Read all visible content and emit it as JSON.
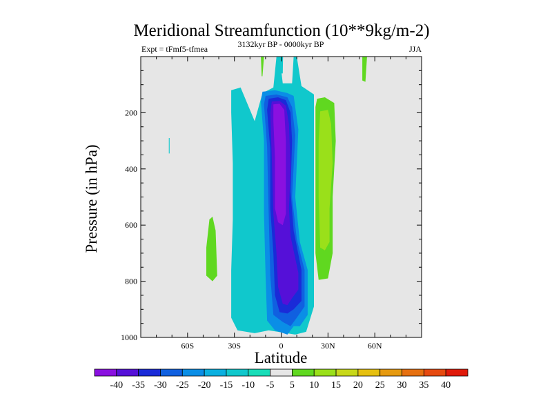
{
  "chart_data": {
    "type": "heatmap",
    "title": "Meridional Streamfunction (10**9kg/m-2)",
    "left_string": "Expt = tFmf5-tfmea",
    "center_string": "3132kyr BP - 0000kyr BP",
    "right_string": "JJA",
    "xlabel": "Latitude",
    "ylabel": "Pressure (in hPa)",
    "xlim": [
      -90,
      90
    ],
    "ylim": [
      1000,
      0
    ],
    "x_ticks": [
      {
        "value": -60,
        "label": "60S"
      },
      {
        "value": -30,
        "label": "30S"
      },
      {
        "value": 0,
        "label": "0"
      },
      {
        "value": 30,
        "label": "30N"
      },
      {
        "value": 60,
        "label": "60N"
      }
    ],
    "y_ticks": [
      {
        "value": 200,
        "label": "200"
      },
      {
        "value": 400,
        "label": "400"
      },
      {
        "value": 600,
        "label": "600"
      },
      {
        "value": 800,
        "label": "800"
      },
      {
        "value": 1000,
        "label": "1000"
      }
    ],
    "background_color": "#e6e6e6",
    "colorbar": {
      "levels": [
        -40,
        -35,
        -30,
        -25,
        -20,
        -15,
        -10,
        -5,
        5,
        10,
        15,
        20,
        25,
        30,
        35,
        40
      ],
      "colors": [
        "#8a10e0",
        "#5510d8",
        "#1a2bd8",
        "#1060e0",
        "#0a8ee6",
        "#0ab0e0",
        "#10c8cc",
        "#18ddb8",
        "#e6e6e6",
        "#60d820",
        "#9ae01a",
        "#c8d81a",
        "#e6c010",
        "#e69a10",
        "#e67010",
        "#e64a10",
        "#e01a0a"
      ]
    },
    "regions": [
      {
        "name": "cyan-band-main",
        "color": "#10c8cc",
        "points": [
          [
            -32,
            120
          ],
          [
            -26,
            110
          ],
          [
            -17,
            230
          ],
          [
            -12,
            130
          ],
          [
            -5,
            110
          ],
          [
            -3,
            0
          ],
          [
            -1,
            0
          ],
          [
            1,
            95
          ],
          [
            7,
            95
          ],
          [
            8,
            0
          ],
          [
            10,
            0
          ],
          [
            13,
            105
          ],
          [
            21,
            135
          ],
          [
            21,
            890
          ],
          [
            16,
            980
          ],
          [
            9,
            990
          ],
          [
            -8,
            975
          ],
          [
            -17,
            985
          ],
          [
            -28,
            975
          ],
          [
            -32,
            930
          ],
          [
            -32,
            760
          ],
          [
            -31,
            580
          ],
          [
            -31,
            380
          ],
          [
            -32,
            200
          ]
        ]
      },
      {
        "name": "cyan-sliver-lon-minus2",
        "color": "#10c8cc",
        "points": [
          [
            -1.5,
            0
          ],
          [
            1.2,
            0
          ],
          [
            1.0,
            60
          ],
          [
            -1.2,
            60
          ]
        ]
      },
      {
        "name": "blue-20",
        "color": "#0a8ee6",
        "points": [
          [
            -12,
            125
          ],
          [
            -4,
            120
          ],
          [
            4,
            130
          ],
          [
            8,
            140
          ],
          [
            11,
            260
          ],
          [
            9,
            500
          ],
          [
            12,
            660
          ],
          [
            17,
            760
          ],
          [
            17,
            920
          ],
          [
            12,
            960
          ],
          [
            8,
            960
          ],
          [
            4,
            990
          ],
          [
            -4,
            975
          ],
          [
            -9,
            940
          ],
          [
            -10,
            780
          ],
          [
            -11,
            560
          ],
          [
            -11,
            300
          ],
          [
            -13,
            160
          ]
        ]
      },
      {
        "name": "blue-25",
        "color": "#1060e0",
        "points": [
          [
            -10,
            140
          ],
          [
            -3,
            135
          ],
          [
            4,
            145
          ],
          [
            7,
            180
          ],
          [
            9,
            280
          ],
          [
            7,
            500
          ],
          [
            10,
            650
          ],
          [
            15,
            760
          ],
          [
            15,
            890
          ],
          [
            10,
            930
          ],
          [
            6,
            960
          ],
          [
            1,
            945
          ],
          [
            -5,
            920
          ],
          [
            -7,
            780
          ],
          [
            -8,
            560
          ],
          [
            -9,
            320
          ],
          [
            -11,
            170
          ]
        ]
      },
      {
        "name": "blue-30",
        "color": "#1a2bd8",
        "points": [
          [
            -8,
            150
          ],
          [
            -2,
            145
          ],
          [
            3,
            155
          ],
          [
            6,
            200
          ],
          [
            7,
            300
          ],
          [
            6,
            480
          ],
          [
            8,
            620
          ],
          [
            13,
            760
          ],
          [
            13,
            870
          ],
          [
            8,
            900
          ],
          [
            4,
            915
          ],
          [
            -1,
            910
          ],
          [
            -4,
            850
          ],
          [
            -5,
            700
          ],
          [
            -7,
            540
          ],
          [
            -7,
            330
          ],
          [
            -9,
            190
          ]
        ]
      },
      {
        "name": "blue-35",
        "color": "#5510d8",
        "points": [
          [
            -6,
            160
          ],
          [
            -1,
            158
          ],
          [
            3,
            175
          ],
          [
            5,
            240
          ],
          [
            6,
            400
          ],
          [
            5,
            540
          ],
          [
            6,
            640
          ],
          [
            11,
            770
          ],
          [
            11,
            830
          ],
          [
            7,
            860
          ],
          [
            4,
            885
          ],
          [
            1,
            880
          ],
          [
            -2,
            820
          ],
          [
            -3,
            700
          ],
          [
            -5,
            560
          ],
          [
            -6,
            360
          ],
          [
            -7,
            200
          ]
        ]
      },
      {
        "name": "purple-40",
        "color": "#8a10e0",
        "points": [
          [
            -5,
            170
          ],
          [
            -1,
            168
          ],
          [
            2,
            190
          ],
          [
            3,
            300
          ],
          [
            3,
            450
          ],
          [
            3,
            560
          ],
          [
            1,
            600
          ],
          [
            -2,
            590
          ],
          [
            -4,
            540
          ],
          [
            -4,
            360
          ],
          [
            -5,
            230
          ]
        ]
      },
      {
        "name": "green-south-10",
        "color": "#60d820",
        "points": [
          [
            -46,
            580
          ],
          [
            -44,
            570
          ],
          [
            -42,
            620
          ],
          [
            -41,
            780
          ],
          [
            -44,
            800
          ],
          [
            -48,
            780
          ],
          [
            -48,
            680
          ]
        ]
      },
      {
        "name": "green-main-10",
        "color": "#60d820",
        "points": [
          [
            23,
            150
          ],
          [
            28,
            145
          ],
          [
            34,
            165
          ],
          [
            35,
            300
          ],
          [
            33,
            500
          ],
          [
            33,
            700
          ],
          [
            30,
            790
          ],
          [
            24,
            795
          ],
          [
            22,
            700
          ],
          [
            22,
            400
          ],
          [
            22,
            180
          ]
        ]
      },
      {
        "name": "green-main-15",
        "color": "#9ae01a",
        "points": [
          [
            25,
            195
          ],
          [
            30,
            190
          ],
          [
            32,
            240
          ],
          [
            33,
            380
          ],
          [
            31,
            540
          ],
          [
            31,
            660
          ],
          [
            28,
            690
          ],
          [
            25,
            680
          ],
          [
            24,
            500
          ],
          [
            24,
            300
          ]
        ]
      },
      {
        "name": "green-north-sliver",
        "color": "#60d820",
        "points": [
          [
            52,
            0
          ],
          [
            55,
            0
          ],
          [
            54,
            90
          ],
          [
            52,
            85
          ]
        ]
      },
      {
        "name": "green-south-sliver",
        "color": "#60d820",
        "points": [
          [
            -13,
            0
          ],
          [
            -11,
            0
          ],
          [
            -12,
            70
          ],
          [
            -12.5,
            70
          ]
        ]
      },
      {
        "name": "cyan-south-speck",
        "color": "#10c8cc",
        "points": [
          [
            -72,
            290
          ],
          [
            -71.5,
            290
          ],
          [
            -71.5,
            345
          ],
          [
            -72,
            345
          ]
        ]
      }
    ]
  }
}
